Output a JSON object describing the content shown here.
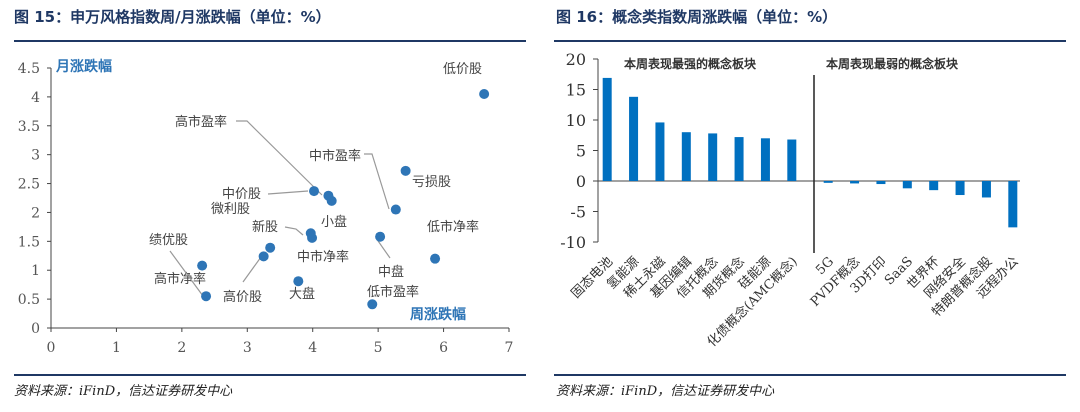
{
  "left": {
    "title": "图 15：申万风格指数周/月涨跌幅（单位：%）",
    "source": "资料来源：iFinD，信达证券研发中心"
  },
  "right": {
    "title": "图 16：概念类指数周涨跌幅（单位：%）",
    "source": "资料来源：iFinD，信达证券研发中心"
  },
  "chart_data": [
    {
      "type": "scatter",
      "xlabel": "周涨跌幅",
      "ylabel": "月涨跌幅",
      "xlim": [
        0,
        7
      ],
      "ylim": [
        0,
        4.5
      ],
      "xticks": [
        "0",
        "1",
        "2",
        "3",
        "4",
        "5",
        "6",
        "7"
      ],
      "yticks": [
        "0",
        "0.5",
        "1",
        "1.5",
        "2",
        "2.5",
        "3",
        "3.5",
        "4",
        "4.5"
      ],
      "color": "#2e75b6",
      "points": [
        {
          "label": "低价股",
          "x": 6.62,
          "y": 4.05
        },
        {
          "label": "亏损股",
          "x": 5.42,
          "y": 2.72
        },
        {
          "label": "中市盈率",
          "x": 5.27,
          "y": 2.05
        },
        {
          "label": "高市盈率",
          "x": 4.24,
          "y": 2.29
        },
        {
          "label": "小盘",
          "x": 4.29,
          "y": 2.2
        },
        {
          "label": "中价股",
          "x": 4.02,
          "y": 2.37
        },
        {
          "label": "新股",
          "x": 3.97,
          "y": 1.64
        },
        {
          "label": "中市净率",
          "x": 3.99,
          "y": 1.56
        },
        {
          "label": "中盘",
          "x": 5.03,
          "y": 1.58
        },
        {
          "label": "低市净率",
          "x": 5.87,
          "y": 1.2
        },
        {
          "label": "微利股",
          "x": 3.35,
          "y": 1.39
        },
        {
          "label": "高价股",
          "x": 3.25,
          "y": 1.24
        },
        {
          "label": "高市净率",
          "x": 2.31,
          "y": 1.08
        },
        {
          "label": "绩优股",
          "x": 2.37,
          "y": 0.55
        },
        {
          "label": "大盘",
          "x": 3.78,
          "y": 0.81
        },
        {
          "label": "低市盈率",
          "x": 4.91,
          "y": 0.41
        }
      ]
    },
    {
      "type": "bar",
      "ylim": [
        -10,
        20
      ],
      "yticks": [
        "-10",
        "-5",
        "0",
        "5",
        "10",
        "15",
        "20"
      ],
      "color": "#0070c0",
      "annotations": [
        "本周表现最强的概念板块",
        "本周表现最弱的概念板块"
      ],
      "categories": [
        "固态电池",
        "氢能源",
        "稀土永磁",
        "基因编辑",
        "信托概念",
        "期货概念",
        "硅能源",
        "化债概念(AMC概念)",
        "5G",
        "PVDF概念",
        "3D打印",
        "SaaS",
        "世界杯",
        "网络安全",
        "特朗普概念股",
        "远程办公"
      ],
      "values": [
        16.9,
        13.8,
        9.6,
        8.0,
        7.8,
        7.2,
        7.0,
        6.8,
        -0.3,
        -0.4,
        -0.5,
        -1.2,
        -1.5,
        -2.3,
        -2.7,
        -7.6
      ]
    }
  ]
}
